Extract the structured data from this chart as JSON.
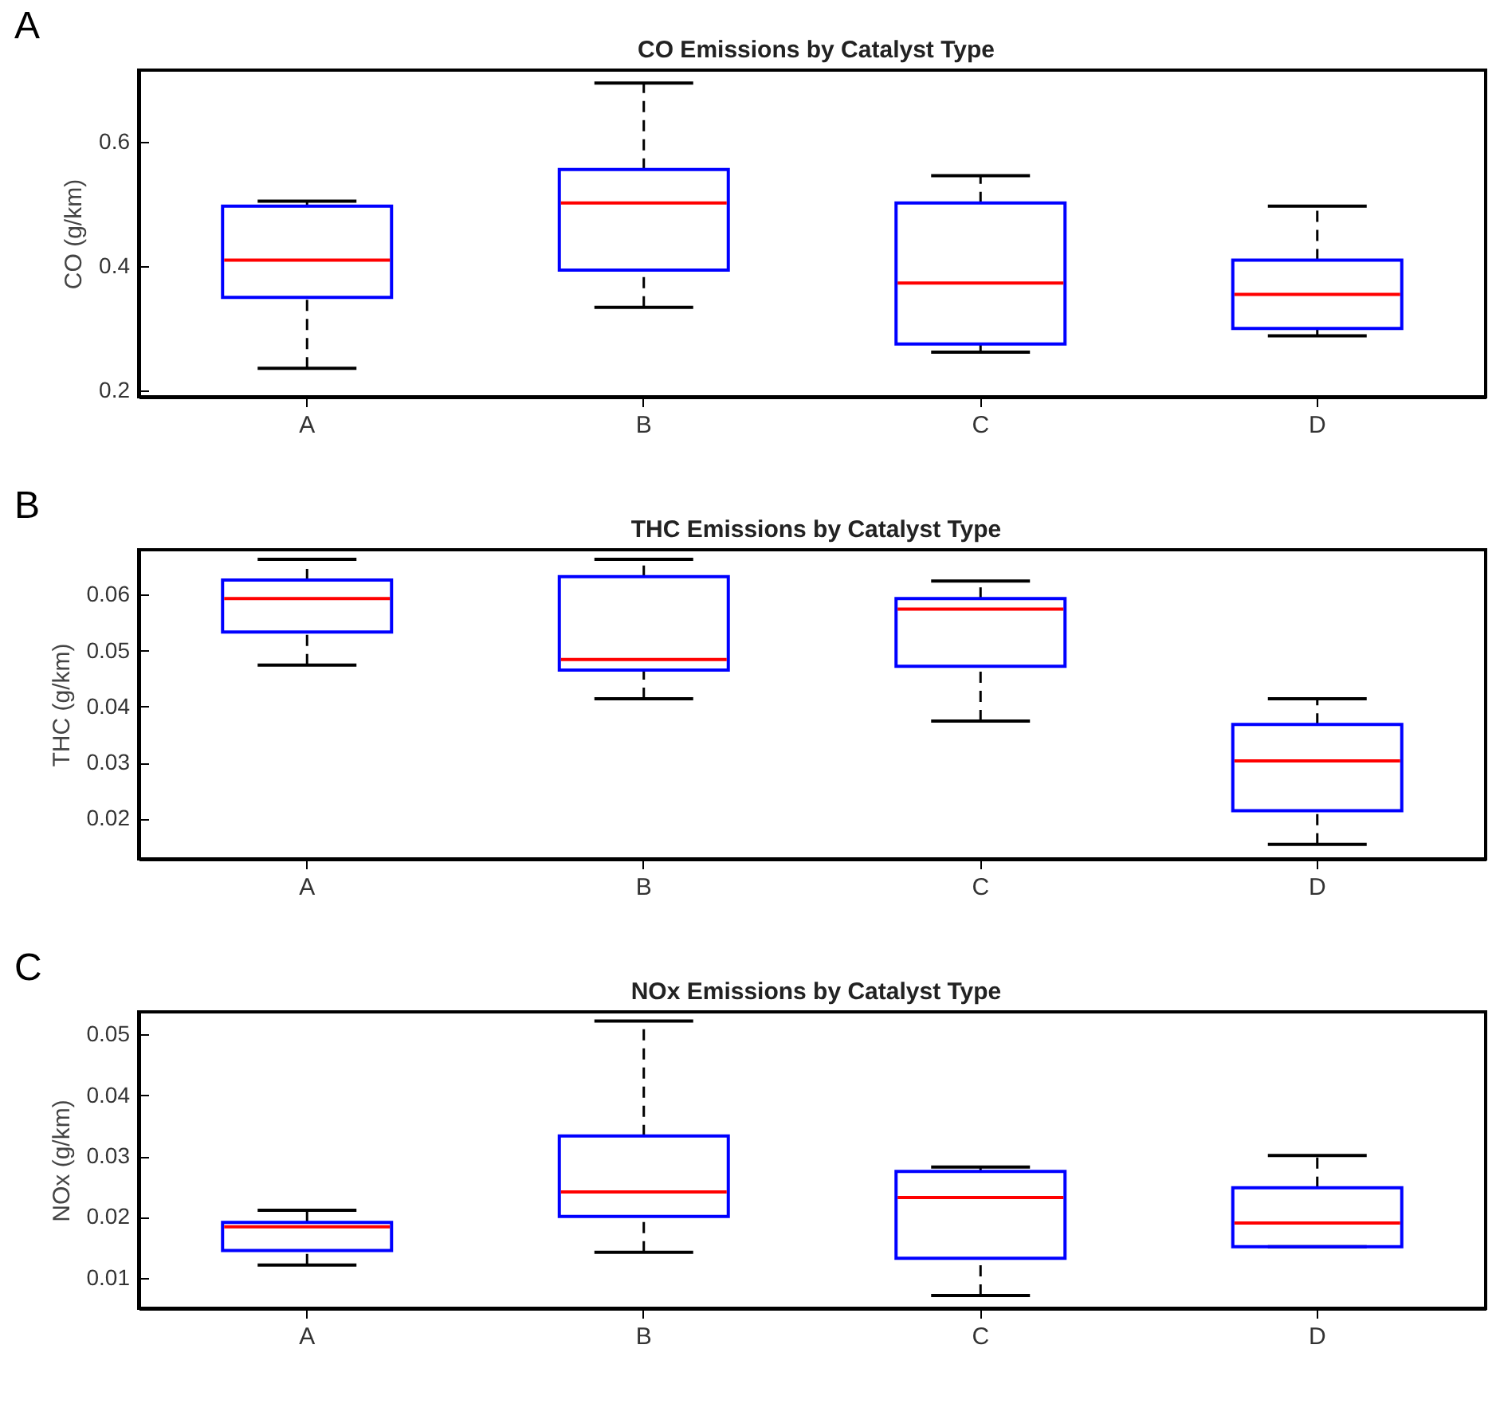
{
  "chart_data": [
    {
      "type": "box",
      "title": "CO Emissions by Catalyst Type",
      "ylabel": "CO (g/km)",
      "annotations": [
        "A"
      ],
      "categories": [
        "A",
        "B",
        "C",
        "D"
      ],
      "ylim": [
        0.19,
        0.716
      ],
      "yticks": [
        0.2,
        0.4,
        0.6
      ],
      "grid": false,
      "line_style": "dashed",
      "series": [
        {
          "color": "#0000ff",
          "boxes": [
            {
              "low": 0.236,
              "q1": 0.35,
              "median": 0.41,
              "q3": 0.497,
              "high": 0.505
            },
            {
              "low": 0.334,
              "q1": 0.394,
              "median": 0.502,
              "q3": 0.556,
              "high": 0.695
            },
            {
              "low": 0.262,
              "q1": 0.275,
              "median": 0.373,
              "q3": 0.502,
              "high": 0.546
            },
            {
              "low": 0.288,
              "q1": 0.3,
              "median": 0.355,
              "q3": 0.41,
              "high": 0.497
            }
          ]
        }
      ]
    },
    {
      "type": "box",
      "title": "THC Emissions by Catalyst Type",
      "ylabel": "THC (g/km)",
      "annotations": [
        "B"
      ],
      "categories": [
        "A",
        "B",
        "C",
        "D"
      ],
      "ylim": [
        0.0128,
        0.068
      ],
      "yticks": [
        0.02,
        0.03,
        0.04,
        0.05,
        0.06
      ],
      "grid": false,
      "line_style": "dashed",
      "series": [
        {
          "color": "#0000ff",
          "boxes": [
            {
              "low": 0.0474,
              "q1": 0.0533,
              "median": 0.0593,
              "q3": 0.0626,
              "high": 0.0663
            },
            {
              "low": 0.0414,
              "q1": 0.0465,
              "median": 0.0484,
              "q3": 0.0632,
              "high": 0.0663
            },
            {
              "low": 0.0374,
              "q1": 0.0472,
              "median": 0.0574,
              "q3": 0.0593,
              "high": 0.0624
            },
            {
              "low": 0.0154,
              "q1": 0.0214,
              "median": 0.0303,
              "q3": 0.0368,
              "high": 0.0414
            }
          ]
        }
      ]
    },
    {
      "type": "box",
      "title": "NOx Emissions by Catalyst Type",
      "ylabel": "NOx (g/km)",
      "annotations": [
        "C"
      ],
      "categories": [
        "A",
        "B",
        "C",
        "D"
      ],
      "ylim": [
        0.005,
        0.0537
      ],
      "yticks": [
        0.01,
        0.02,
        0.03,
        0.04,
        0.05
      ],
      "grid": false,
      "line_style": "dashed",
      "series": [
        {
          "color": "#0000ff",
          "boxes": [
            {
              "low": 0.0121,
              "q1": 0.0145,
              "median": 0.0184,
              "q3": 0.0191,
              "high": 0.0211
            },
            {
              "low": 0.0142,
              "q1": 0.0201,
              "median": 0.0241,
              "q3": 0.0333,
              "high": 0.0522
            },
            {
              "low": 0.0071,
              "q1": 0.0132,
              "median": 0.0232,
              "q3": 0.0275,
              "high": 0.0282
            },
            {
              "low": 0.0151,
              "q1": 0.0151,
              "median": 0.019,
              "q3": 0.0248,
              "high": 0.0301
            }
          ]
        }
      ]
    }
  ]
}
